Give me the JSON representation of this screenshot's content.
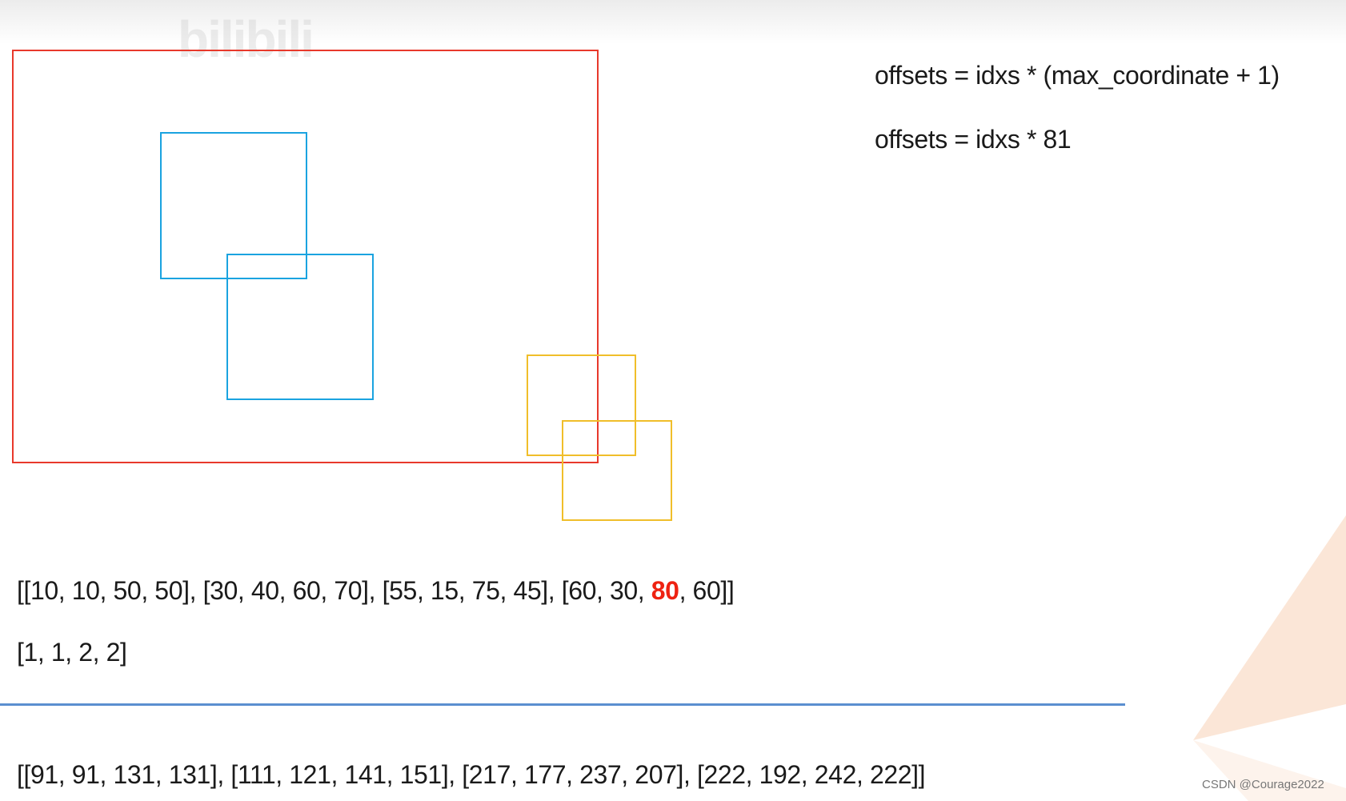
{
  "watermark": "bilibili",
  "formulas": [
    "offsets = idxs * (max_coordinate + 1)",
    "offsets = idxs * 81"
  ],
  "boxes_line": {
    "before": "[[10, 10, 50, 50],  [30, 40, 60, 70],  [55, 15, 75, 45],  [60, 30, ",
    "highlight": "80",
    "after": ", 60]]"
  },
  "idxs_line": "[1,  1,  2,  2]",
  "offset_boxes_line": "[[91, 91, 131, 131],  [111, 121, 141, 151],  [217, 177, 237, 207],  [222, 192, 242, 222]]",
  "credit": "CSDN @Courage2022",
  "colors": {
    "frame": "#e8392b",
    "class1": "#1aa3e0",
    "class2": "#f0be2a",
    "highlight": "#ee2211",
    "rule": "#5b8fd0"
  }
}
